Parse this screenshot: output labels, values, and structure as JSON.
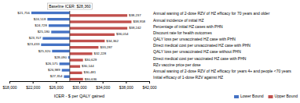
{
  "chart_data": {
    "type": "bar",
    "orientation": "horizontal",
    "title": "Baseline ICER: $28,360",
    "xlabel": "ICER - $ per QALY gained",
    "baseline": 28360,
    "categories": [
      "Annual waning of 2-dose RZV of HZ efficacy for 70 years and older",
      "Annual incidence of initial HZ",
      "Percentage of initial HZ cases with PHN",
      "Discount rate for health outcomes",
      "QALY loss per unvaccinated HZ case with PHN",
      "Direct medical cost per unvaccinated HZ case with PHN",
      "QALY loss per unvaccinated HZ case without PHN",
      "Direct medical cost per vaccinated HZ case with PHN",
      "RZv vaccine price per dose",
      "Annual waning of 2-dose RZV of HZ efficacy for years 4+ and people <70 years",
      "Initial efficacy of 1-dose RZV against HZ"
    ],
    "series": [
      {
        "name": "Lower Bound",
        "color": "#4472C4",
        "values": [
          21756,
          24518,
          24728,
          25180,
          23707,
          23433,
          25320,
          28090,
          26575,
          26989,
          27354
        ],
        "value_labels": [
          "$21,756",
          "$24,518",
          "$24,728",
          "$25,180",
          "$23,707",
          "$23,433",
          "$25,320",
          "$28,090",
          "$26,575",
          "$26,989",
          "$27,354"
        ]
      },
      {
        "name": "Upper Bound",
        "color": "#C0504D",
        "values": [
          38237,
          38958,
          38242,
          36054,
          34362,
          33287,
          32228,
          30629,
          30144,
          30481,
          30636
        ],
        "value_labels": [
          "$38,237",
          "$38,958",
          "$38,242",
          "$36,054",
          "$34,362",
          "$33,287",
          "$32,228",
          "$30,629",
          "$30,144",
          "$30,481",
          "$30,636"
        ]
      }
    ],
    "xlim": [
      18000,
      42000
    ],
    "xticks": [
      {
        "value": 18000,
        "label": "$18,000"
      },
      {
        "value": 22000,
        "label": "$22,000"
      },
      {
        "value": 26000,
        "label": "$26,000"
      },
      {
        "value": 30000,
        "label": "$30,000"
      },
      {
        "value": 34000,
        "label": "$34,000"
      },
      {
        "value": 38000,
        "label": "$38,000"
      },
      {
        "value": 42000,
        "label": "$42,000"
      }
    ],
    "data_labels": true,
    "legend": "lower right",
    "grid": false
  }
}
